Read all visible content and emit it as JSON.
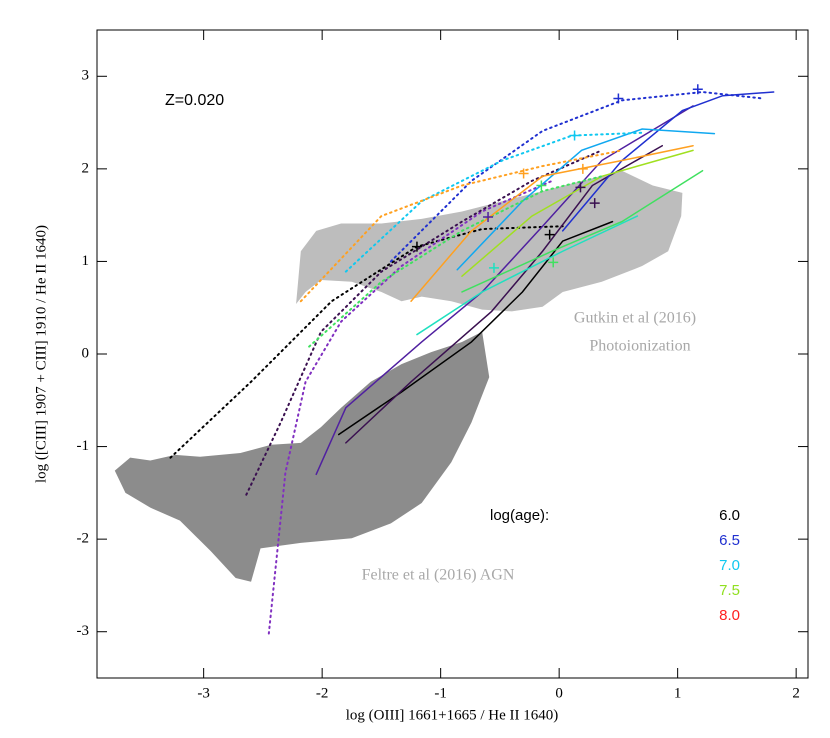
{
  "chart_data": {
    "type": "line",
    "xlabel": "log (OIII] 1661+1665 / He II 1640)",
    "ylabel": "log ([CIII] 1907 + CIII] 1910 / He II 1640)",
    "xlim": [
      -3.9,
      2.1
    ],
    "ylim": [
      -3.5,
      3.5
    ],
    "xticks": [
      -3,
      -2,
      -1,
      0,
      1,
      2
    ],
    "yticks": [
      -3,
      -2,
      -1,
      0,
      1,
      2,
      3
    ],
    "annotations": [
      "Z=0.020",
      "Gutkin et al (2016)",
      "Photoionization",
      "Feltre et al (2016) AGN"
    ],
    "legend": {
      "title": "log(age):",
      "entries": [
        {
          "label": "6.0",
          "color": "#000000"
        },
        {
          "label": "6.5",
          "color": "#2030d0"
        },
        {
          "label": "7.0",
          "color": "#10c8f0"
        },
        {
          "label": "7.5",
          "color": "#90e020"
        },
        {
          "label": "8.0",
          "color": "#ff2020"
        }
      ]
    },
    "regions": [
      {
        "color": "#bdbdbd",
        "x": [
          -2.22,
          -2.18,
          -2.05,
          -1.84,
          -1.5,
          -1.16,
          -0.82,
          -0.48,
          -0.14,
          0.19,
          0.53,
          0.79,
          1.04,
          1.03,
          0.92,
          0.7,
          0.36,
          0.03,
          -0.14,
          -0.4,
          -0.65,
          -0.91,
          -1.16,
          -1.33,
          -1.5,
          -1.75,
          -2.01,
          -2.14
        ],
        "y": [
          0.54,
          1.11,
          1.33,
          1.41,
          1.41,
          1.46,
          1.54,
          1.65,
          1.76,
          1.87,
          1.98,
          1.82,
          1.74,
          1.49,
          1.11,
          0.95,
          0.78,
          0.67,
          0.51,
          0.46,
          0.48,
          0.57,
          0.62,
          0.57,
          0.67,
          0.78,
          0.8,
          0.67
        ]
      },
      {
        "color": "#8c8c8c",
        "x": [
          -3.75,
          -3.62,
          -3.45,
          -3.24,
          -3.03,
          -2.69,
          -2.43,
          -2.18,
          -2.01,
          -1.84,
          -1.59,
          -1.33,
          -1.08,
          -0.82,
          -0.65,
          -0.59,
          -0.74,
          -0.91,
          -1.16,
          -1.42,
          -1.75,
          -2.18,
          -2.52,
          -2.6,
          -2.73,
          -2.94,
          -3.2,
          -3.45,
          -3.66
        ],
        "y": [
          -1.26,
          -1.12,
          -1.15,
          -1.09,
          -1.11,
          -1.07,
          -0.98,
          -0.96,
          -0.79,
          -0.58,
          -0.3,
          -0.11,
          0.02,
          0.13,
          0.24,
          -0.25,
          -0.74,
          -1.17,
          -1.61,
          -1.83,
          -1.99,
          -2.04,
          -2.1,
          -2.46,
          -2.42,
          -2.13,
          -1.8,
          -1.66,
          -1.5
        ]
      }
    ],
    "series": [
      {
        "color": "#000000",
        "style": "dotted",
        "x": [
          -3.28,
          -2.6,
          -1.92,
          -1.2,
          -0.65,
          0.03
        ],
        "y": [
          -1.12,
          -0.3,
          0.57,
          1.16,
          1.35,
          1.38
        ]
      },
      {
        "color": "#000000",
        "style": "solid",
        "x": [
          -1.86,
          -1.33,
          -0.74,
          -0.31,
          0.03,
          0.45
        ],
        "y": [
          -0.87,
          -0.41,
          0.13,
          0.67,
          1.22,
          1.43
        ]
      },
      {
        "color": "#3a1050",
        "style": "solid",
        "x": [
          -1.8,
          -1.25,
          -0.57,
          -0.14,
          0.28,
          0.87
        ],
        "y": [
          -0.96,
          -0.3,
          0.46,
          1.11,
          1.82,
          2.25
        ]
      },
      {
        "color": "#5020a0",
        "style": "solid",
        "x": [
          -2.05,
          -1.8,
          -1.16,
          -0.65,
          -0.14,
          0.36,
          1.13
        ],
        "y": [
          -1.3,
          -0.58,
          0.13,
          0.67,
          1.38,
          2.09,
          2.68
        ]
      },
      {
        "color": "#8030c0",
        "style": "dotted",
        "x": [
          -2.45,
          -2.31,
          -2.14,
          -1.84,
          -1.33,
          -0.65,
          -0.06
        ],
        "y": [
          -3.02,
          -1.28,
          -0.3,
          0.35,
          0.95,
          1.54,
          1.87
        ]
      },
      {
        "color": "#3a1050",
        "style": "dotted",
        "x": [
          -2.64,
          -2.35,
          -2.01,
          -1.5,
          -0.82,
          -0.23,
          0.36
        ],
        "y": [
          -1.52,
          -0.74,
          0.24,
          0.89,
          1.43,
          1.87,
          2.2
        ]
      },
      {
        "color": "#2030d0",
        "style": "solid",
        "x": [
          0.03,
          0.53,
          1.04,
          1.38,
          1.81
        ],
        "y": [
          1.33,
          2.09,
          2.63,
          2.79,
          2.83
        ]
      },
      {
        "color": "#2030d0",
        "style": "dotted",
        "x": [
          -1.42,
          -0.74,
          -0.14,
          0.53,
          1.21,
          1.72
        ],
        "y": [
          1.0,
          1.87,
          2.41,
          2.74,
          2.83,
          2.76
        ]
      },
      {
        "color": "#10a8f0",
        "style": "solid",
        "x": [
          -0.86,
          -0.31,
          0.19,
          0.7,
          1.31
        ],
        "y": [
          0.91,
          1.65,
          2.2,
          2.43,
          2.38
        ]
      },
      {
        "color": "#10c8f0",
        "style": "dotted",
        "x": [
          -1.8,
          -1.16,
          -0.48,
          0.11,
          0.7
        ],
        "y": [
          0.89,
          1.65,
          2.09,
          2.36,
          2.39
        ]
      },
      {
        "color": "#20e0c0",
        "style": "solid",
        "x": [
          -1.2,
          -0.65,
          0.03,
          0.66
        ],
        "y": [
          0.21,
          0.67,
          1.11,
          1.49
        ]
      },
      {
        "color": "#40e060",
        "style": "solid",
        "x": [
          -0.82,
          -0.06,
          0.53,
          1.21
        ],
        "y": [
          0.67,
          1.11,
          1.43,
          1.98
        ]
      },
      {
        "color": "#a0e020",
        "style": "solid",
        "x": [
          -0.82,
          -0.23,
          0.36,
          1.13
        ],
        "y": [
          0.84,
          1.49,
          1.92,
          2.2
        ]
      },
      {
        "color": "#40e060",
        "style": "dotted",
        "x": [
          -2.11,
          -1.5,
          -0.82,
          -0.14,
          0.36
        ],
        "y": [
          0.08,
          0.78,
          1.33,
          1.76,
          1.92
        ]
      },
      {
        "color": "#ffa020",
        "style": "solid",
        "x": [
          -1.25,
          -0.74,
          -0.14,
          0.53,
          1.13
        ],
        "y": [
          0.57,
          1.33,
          1.92,
          2.09,
          2.25
        ]
      },
      {
        "color": "#ffa020",
        "style": "dotted",
        "x": [
          -2.18,
          -1.5,
          -0.82,
          -0.14,
          0.53
        ],
        "y": [
          0.57,
          1.49,
          1.82,
          2.03,
          2.2
        ]
      }
    ],
    "markers": [
      {
        "color": "#000000",
        "x": -1.2,
        "y": 1.16
      },
      {
        "color": "#5020a0",
        "x": -0.6,
        "y": 1.48
      },
      {
        "color": "#000000",
        "x": -0.08,
        "y": 1.29
      },
      {
        "color": "#3a1050",
        "x": 0.3,
        "y": 1.63
      },
      {
        "color": "#3a1050",
        "x": 0.18,
        "y": 1.8
      },
      {
        "color": "#2030d0",
        "x": 0.5,
        "y": 2.76
      },
      {
        "color": "#2030d0",
        "x": 1.17,
        "y": 2.86
      },
      {
        "color": "#10c8f0",
        "x": 0.13,
        "y": 2.36
      },
      {
        "color": "#ffa020",
        "x": -0.3,
        "y": 1.95
      },
      {
        "color": "#20e0c0",
        "x": -0.55,
        "y": 0.93
      },
      {
        "color": "#40e060",
        "x": -0.05,
        "y": 0.99
      },
      {
        "color": "#40e060",
        "x": -0.15,
        "y": 1.82
      },
      {
        "color": "#ffa020",
        "x": 0.2,
        "y": 2.0
      }
    ]
  }
}
